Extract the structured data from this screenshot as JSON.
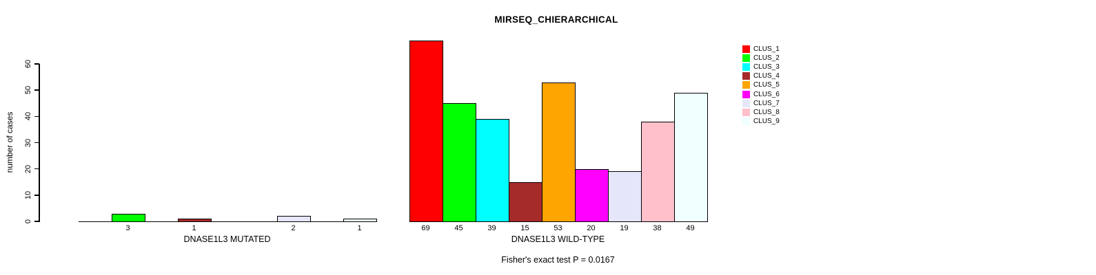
{
  "chart_data": {
    "type": "bar",
    "title": "MIRSEQ_CHIERARCHICAL",
    "ylabel": "number of cases",
    "ylim": [
      0,
      60
    ],
    "yticks": [
      0,
      10,
      20,
      30,
      40,
      50,
      60
    ],
    "grid": false,
    "legend_position": "top-right",
    "bar_value_labels_shown": "values greater than zero are printed under each bar",
    "categories": [
      "CLUS_1",
      "CLUS_2",
      "CLUS_3",
      "CLUS_4",
      "CLUS_5",
      "CLUS_6",
      "CLUS_7",
      "CLUS_8",
      "CLUS_9"
    ],
    "colors": [
      "#FF0000",
      "#00FF00",
      "#00FFFF",
      "#A52A2A",
      "#FFA500",
      "#FF00FF",
      "#E6E6FA",
      "#FFC0CB",
      "#F0FFFF"
    ],
    "groups": [
      {
        "label": "DNASE1L3 MUTATED",
        "values": [
          0,
          3,
          0,
          1,
          0,
          0,
          2,
          0,
          1
        ]
      },
      {
        "label": "DNASE1L3 WILD-TYPE",
        "values": [
          69,
          45,
          39,
          15,
          53,
          20,
          19,
          38,
          49
        ]
      }
    ],
    "annotation": "Fisher's exact test P = 0.0167",
    "axis_color": "#000000",
    "background_color": "#FFFFFF"
  }
}
